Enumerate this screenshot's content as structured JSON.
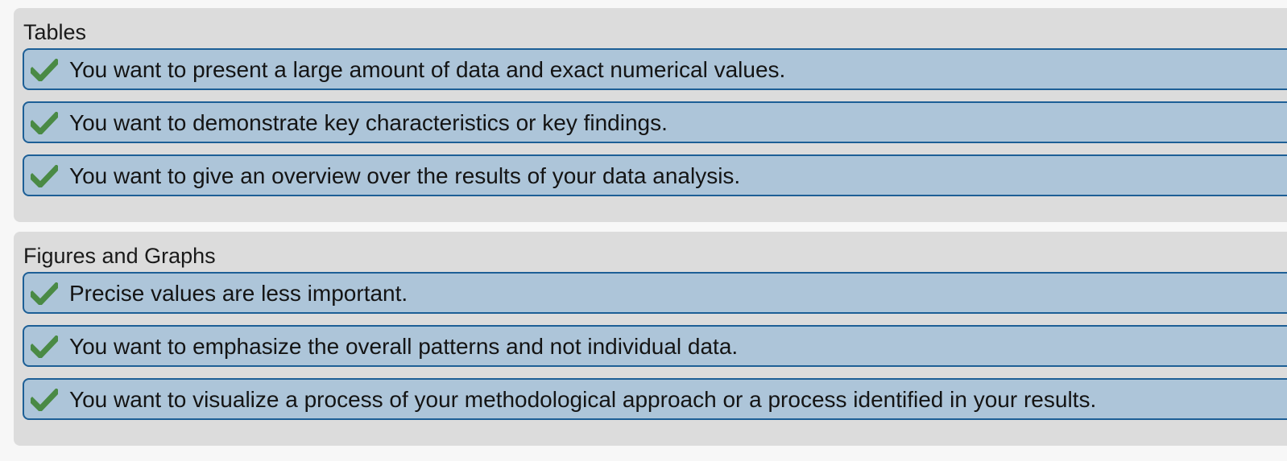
{
  "sections": [
    {
      "title": "Tables",
      "items": [
        {
          "icon": "check-icon",
          "label": "You want to present a large amount of data and exact numerical values."
        },
        {
          "icon": "check-icon",
          "label": "You want to demonstrate key characteristics or key findings."
        },
        {
          "icon": "check-icon",
          "label": "You want to give an overview over the results of your data analysis."
        }
      ]
    },
    {
      "title": "Figures and Graphs",
      "items": [
        {
          "icon": "check-icon",
          "label": "Precise values are less important."
        },
        {
          "icon": "check-icon",
          "label": "You want to emphasize the overall patterns and not individual data."
        },
        {
          "icon": "check-icon",
          "label": "You want to visualize a process of your methodological approach or a process identified in your results."
        }
      ]
    }
  ],
  "colors": {
    "panel_bg": "#dcdcdc",
    "item_bg": "#adc5d9",
    "item_border": "#1d5f96",
    "check": "#4a8a45"
  }
}
